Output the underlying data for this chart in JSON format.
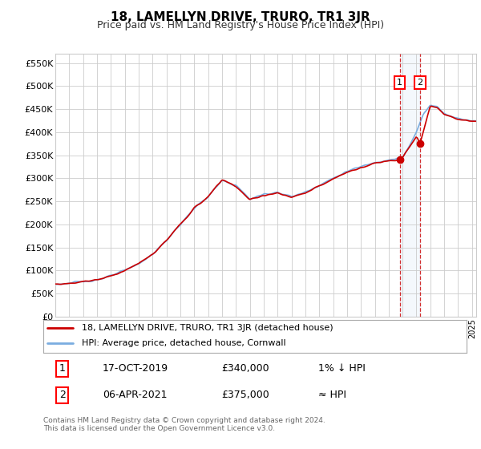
{
  "title": "18, LAMELLYN DRIVE, TRURO, TR1 3JR",
  "subtitle": "Price paid vs. HM Land Registry's House Price Index (HPI)",
  "ylabel_ticks": [
    "£0",
    "£50K",
    "£100K",
    "£150K",
    "£200K",
    "£250K",
    "£300K",
    "£350K",
    "£400K",
    "£450K",
    "£500K",
    "£550K"
  ],
  "ytick_values": [
    0,
    50000,
    100000,
    150000,
    200000,
    250000,
    300000,
    350000,
    400000,
    450000,
    500000,
    550000
  ],
  "ylim": [
    0,
    570000
  ],
  "xlim_start": 1995.0,
  "xlim_end": 2025.3,
  "hpi_color": "#7aade0",
  "price_color": "#cc0000",
  "background_color": "#ffffff",
  "grid_color": "#cccccc",
  "transaction1_x": 2019.79,
  "transaction1_y": 340000,
  "transaction2_x": 2021.26,
  "transaction2_y": 375000,
  "legend_price_label": "18, LAMELLYN DRIVE, TRURO, TR1 3JR (detached house)",
  "legend_hpi_label": "HPI: Average price, detached house, Cornwall",
  "table_row1": [
    "1",
    "17-OCT-2019",
    "£340,000",
    "1% ↓ HPI"
  ],
  "table_row2": [
    "2",
    "06-APR-2021",
    "£375,000",
    "≈ HPI"
  ],
  "footnote": "Contains HM Land Registry data © Crown copyright and database right 2024.\nThis data is licensed under the Open Government Licence v3.0.",
  "title_fontsize": 11,
  "subtitle_fontsize": 9,
  "hpi_anchors_x": [
    1995,
    1996,
    1997,
    1998,
    1999,
    2000,
    2001,
    2002,
    2003,
    2004,
    2005,
    2006,
    2007,
    2008,
    2009,
    2010,
    2011,
    2012,
    2013,
    2014,
    2015,
    2016,
    2017,
    2018,
    2019,
    2019.5,
    2020,
    2020.5,
    2021,
    2021.5,
    2022,
    2022.5,
    2023,
    2023.5,
    2024,
    2024.5,
    2025
  ],
  "hpi_anchors_y": [
    70000,
    72000,
    76000,
    80000,
    88000,
    100000,
    115000,
    135000,
    165000,
    200000,
    235000,
    260000,
    295000,
    285000,
    255000,
    265000,
    270000,
    260000,
    270000,
    285000,
    300000,
    315000,
    325000,
    335000,
    340000,
    342000,
    345000,
    370000,
    400000,
    440000,
    460000,
    455000,
    440000,
    435000,
    430000,
    428000,
    425000
  ],
  "price_anchors_x": [
    1995,
    1996,
    1997,
    1998,
    1999,
    2000,
    2001,
    2002,
    2003,
    2004,
    2005,
    2006,
    2007,
    2008,
    2009,
    2010,
    2011,
    2012,
    2013,
    2014,
    2015,
    2016,
    2017,
    2018,
    2019,
    2019.79,
    2020,
    2020.5,
    2021,
    2021.26,
    2022,
    2022.5,
    2023,
    2023.5,
    2024,
    2024.5,
    2025
  ],
  "price_anchors_y": [
    70000,
    72000,
    76000,
    80000,
    88000,
    100000,
    115000,
    135000,
    165000,
    200000,
    235000,
    260000,
    297000,
    283000,
    253000,
    263000,
    268000,
    258000,
    268000,
    283000,
    298000,
    313000,
    323000,
    333000,
    338000,
    340000,
    344000,
    368000,
    390000,
    375000,
    458000,
    453000,
    438000,
    433000,
    428000,
    426000,
    423000
  ]
}
